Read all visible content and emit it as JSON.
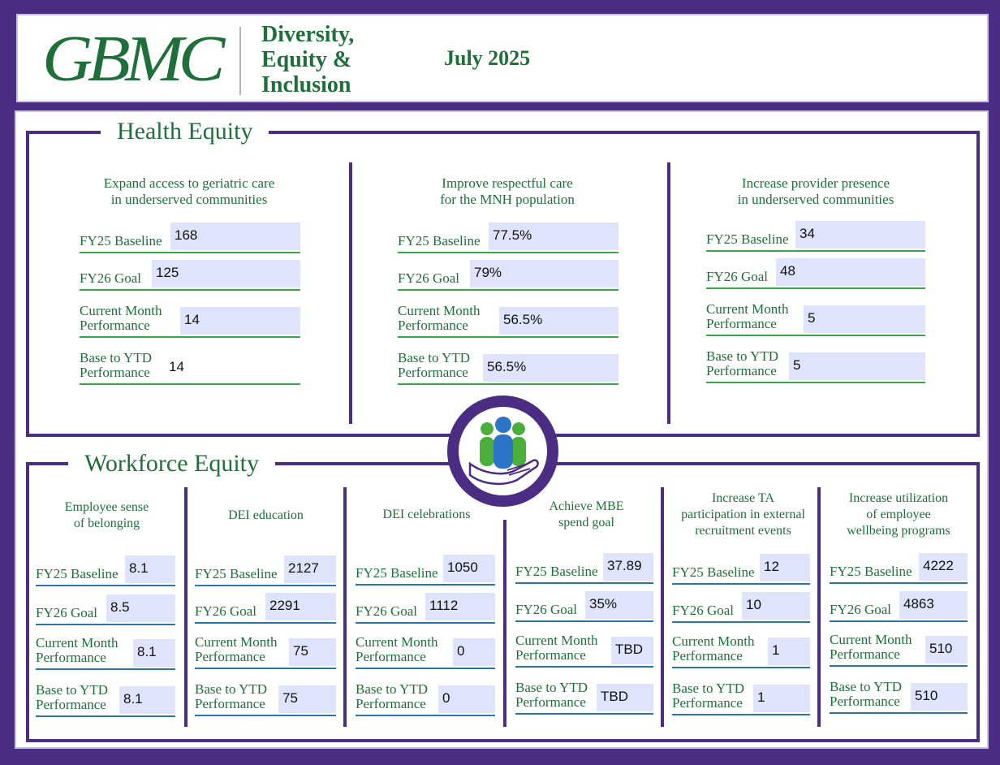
{
  "header": {
    "logo_text": "GBMC",
    "title_lines": [
      "Diversity,",
      "Equity &",
      "Inclusion"
    ],
    "month": "July 2025"
  },
  "health_equity": {
    "title": "Health Equity",
    "columns": [
      {
        "goal": "Expand access to geriatric care\nin underserved communities",
        "metrics": [
          {
            "label": "FY25 Baseline",
            "value": "168"
          },
          {
            "label": "FY26 Goal",
            "value": "125"
          },
          {
            "label": "Current Month\nPerformance",
            "value": "14"
          },
          {
            "label": "Base to YTD\nPerformance",
            "value": "14"
          }
        ]
      },
      {
        "goal": "Improve respectful care\nfor the MNH population",
        "metrics": [
          {
            "label": "FY25 Baseline",
            "value": "77.5%"
          },
          {
            "label": "FY26 Goal",
            "value": "79%"
          },
          {
            "label": "Current Month\nPerformance",
            "value": "56.5%"
          },
          {
            "label": "Base to YTD\nPerformance",
            "value": "56.5%"
          }
        ]
      },
      {
        "goal": "Increase provider presence\nin underserved communities",
        "metrics": [
          {
            "label": "FY25 Baseline",
            "value": "34"
          },
          {
            "label": "FY26 Goal",
            "value": "48"
          },
          {
            "label": "Current Month\nPerformance",
            "value": "5"
          },
          {
            "label": "Base to YTD\nPerformance",
            "value": "5"
          }
        ]
      }
    ]
  },
  "workforce_equity": {
    "title": "Workforce Equity",
    "columns": [
      {
        "goal": "Employee sense\nof belonging",
        "metrics": [
          {
            "label": "FY25 Baseline",
            "value": "8.1"
          },
          {
            "label": "FY26 Goal",
            "value": "8.5"
          },
          {
            "label": "Current Month\nPerformance",
            "value": "8.1"
          },
          {
            "label": "Base to YTD\nPerformance",
            "value": "8.1"
          }
        ]
      },
      {
        "goal": "DEI education",
        "metrics": [
          {
            "label": "FY25 Baseline",
            "value": "2127"
          },
          {
            "label": "FY26 Goal",
            "value": "2291"
          },
          {
            "label": "Current Month\nPerformance",
            "value": "75"
          },
          {
            "label": "Base to YTD\nPerformance",
            "value": "75"
          }
        ]
      },
      {
        "goal": "DEI celebrations",
        "metrics": [
          {
            "label": "FY25 Baseline",
            "value": "1050"
          },
          {
            "label": "FY26 Goal",
            "value": "1112"
          },
          {
            "label": "Current Month\nPerformance",
            "value": "0"
          },
          {
            "label": "Base to YTD\nPerformance",
            "value": "0"
          }
        ]
      },
      {
        "goal": "Achieve MBE\nspend goal",
        "metrics": [
          {
            "label": "FY25 Baseline",
            "value": "37.89"
          },
          {
            "label": "FY26 Goal",
            "value": "35%"
          },
          {
            "label": "Current Month\nPerformance",
            "value": "TBD"
          },
          {
            "label": "Base to YTD\nPerformance",
            "value": "TBD"
          }
        ]
      },
      {
        "goal": "Increase TA\nparticipation in external\nrecruitment events",
        "metrics": [
          {
            "label": "FY25 Baseline",
            "value": "12"
          },
          {
            "label": "FY26 Goal",
            "value": "10"
          },
          {
            "label": "Current Month\nPerformance",
            "value": "1"
          },
          {
            "label": "Base to YTD\nPerformance",
            "value": "1"
          }
        ]
      },
      {
        "goal": "Increase utilization\nof employee\nwellbeing programs",
        "metrics": [
          {
            "label": "FY25 Baseline",
            "value": "4222"
          },
          {
            "label": "FY26 Goal",
            "value": "4863"
          },
          {
            "label": "Current Month\nPerformance",
            "value": "510"
          },
          {
            "label": "Base to YTD\nPerformance",
            "value": "510"
          }
        ]
      }
    ]
  },
  "emblem": {
    "icon": "people-in-hand-icon"
  },
  "colors": {
    "frame": "#4b2e83",
    "text_green": "#1e6f3a",
    "he_line": "#3aa64a",
    "we_line": "#2b74a8",
    "value_bg": "#dfe3fb"
  }
}
